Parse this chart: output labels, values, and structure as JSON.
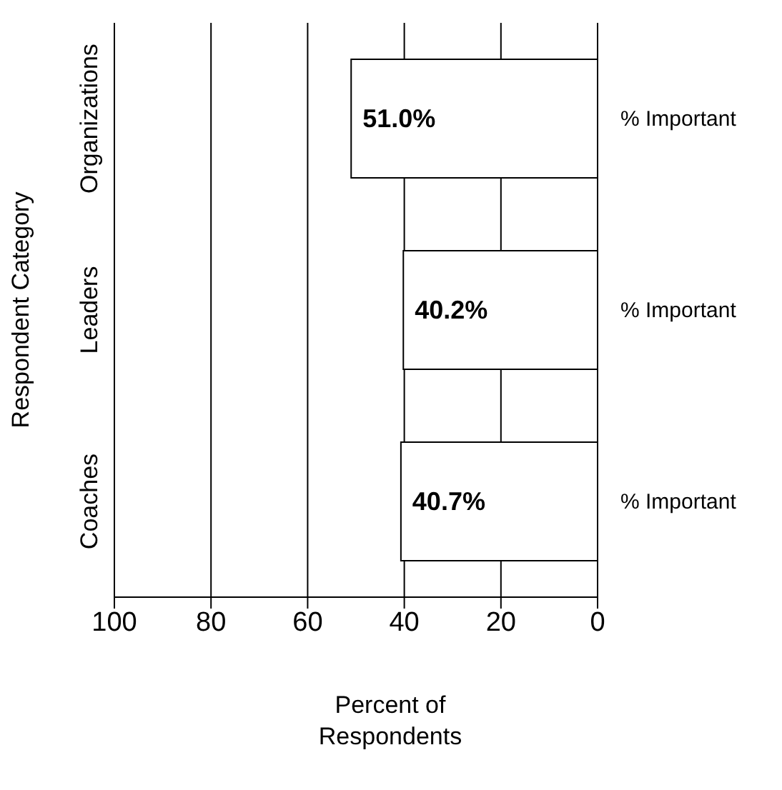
{
  "chart_data": {
    "type": "bar",
    "orientation": "horizontal",
    "xlabel": "Percent of Respondents",
    "ylabel": "Respondent Category",
    "categories": [
      "Organizations",
      "Leaders",
      "Coaches"
    ],
    "series": [
      {
        "name": "% Important",
        "color": "#ffffff",
        "values": [
          51.0,
          40.2,
          40.7
        ],
        "value_labels": [
          "51.0%",
          "40.2%",
          "40.7%"
        ]
      }
    ],
    "xlim": [
      100,
      0
    ],
    "xticks": [
      100,
      80,
      60,
      40,
      20,
      0
    ],
    "grid": "x",
    "legend": false
  }
}
